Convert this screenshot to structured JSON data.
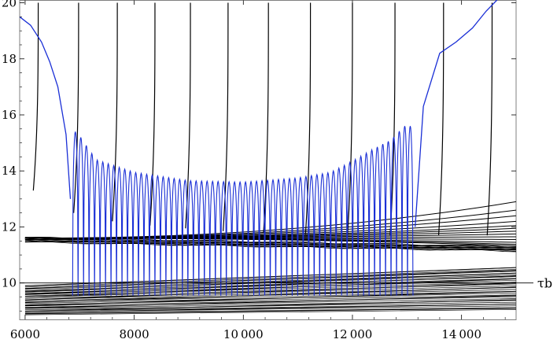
{
  "chart_data": {
    "type": "line",
    "title": "",
    "xlabel": "",
    "ylabel": "",
    "y_reference_label": "τb",
    "y_reference_value": 10,
    "xlim": [
      5900,
      15000
    ],
    "ylim": [
      8.7,
      20.1
    ],
    "x_ticks": [
      6000,
      8000,
      10000,
      12000,
      14000
    ],
    "x_tick_labels": [
      "6000",
      "8000",
      "10 000",
      "12 000",
      "14 000"
    ],
    "y_ticks": [
      10,
      12,
      14,
      16,
      18,
      20
    ],
    "y_tick_labels": [
      "10",
      "12",
      "14",
      "16",
      "18",
      "20"
    ],
    "frame": true,
    "grid": false,
    "colors": {
      "black_series": "#000000",
      "blue_series": "#1a2fd6"
    },
    "black_spikes": {
      "description_free": true,
      "x": [
        6240,
        6980,
        7690,
        8380,
        9030,
        9720,
        10460,
        11230,
        12000,
        12780,
        13670,
        14560
      ],
      "y_near_bottom": [
        13.3,
        12.5,
        12.2,
        12.05,
        11.95,
        11.85,
        11.8,
        11.75,
        11.7,
        11.7,
        11.7,
        11.7
      ],
      "y_top": 20.0
    },
    "black_fan_upper": {
      "x_start": 6000,
      "x_end": 15000,
      "y_start": 11.6,
      "y_end_values": [
        12.9,
        12.6,
        12.4,
        12.2,
        12.05,
        11.95,
        11.85,
        11.75,
        11.65,
        11.55,
        11.45,
        11.38,
        11.33
      ]
    },
    "black_fan_lower": {
      "x_start": 6000,
      "x_end": 15000,
      "y_start_values": [
        9.9,
        9.8,
        9.7,
        9.6,
        9.5,
        9.4,
        9.3,
        9.2,
        9.1,
        9.0,
        8.95,
        8.9
      ],
      "y_end_values": [
        10.55,
        10.45,
        10.35,
        10.25,
        10.15,
        10.0,
        9.85,
        9.7,
        9.55,
        9.4,
        9.25,
        9.1
      ]
    },
    "blue_series": {
      "left_branch_x": [
        5900,
        6100,
        6300,
        6450,
        6600,
        6750,
        6830
      ],
      "left_branch_y": [
        19.5,
        19.2,
        18.6,
        17.9,
        17.0,
        15.3,
        13.0
      ],
      "oscillation_x_range": [
        6870,
        13110
      ],
      "oscillation_count": 62,
      "oscillation_min": 9.55,
      "envelope_x": [
        6950,
        7300,
        8000,
        9000,
        10000,
        11000,
        11600,
        12000,
        12400,
        12700,
        12950
      ],
      "envelope_y": [
        15.4,
        14.4,
        13.95,
        13.65,
        13.6,
        13.75,
        13.95,
        14.35,
        14.8,
        15.1,
        15.6
      ],
      "right_branch_x": [
        13150,
        13300,
        13600,
        13900,
        14200,
        14450,
        14650
      ],
      "right_branch_y": [
        12.0,
        16.3,
        18.2,
        18.6,
        19.1,
        19.7,
        20.1
      ]
    }
  }
}
